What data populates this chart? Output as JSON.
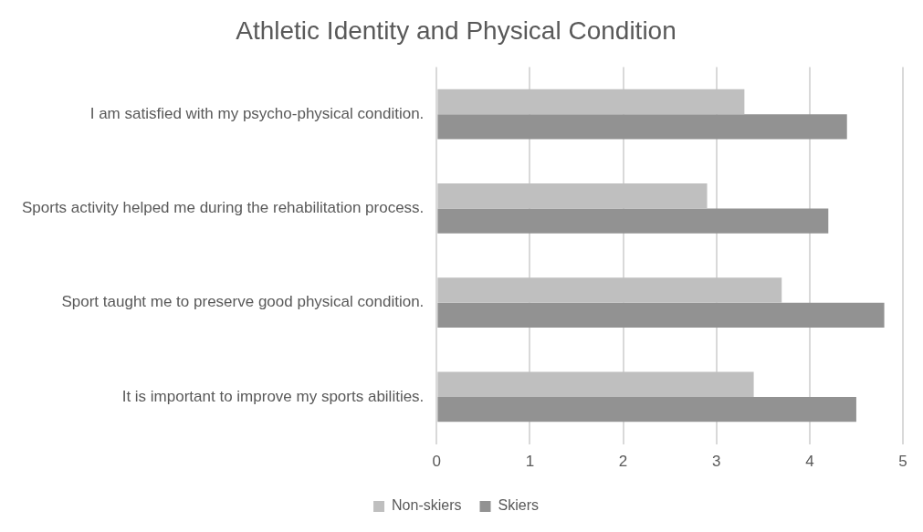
{
  "chart_data": {
    "type": "bar",
    "orientation": "horizontal",
    "title": "Athletic Identity and Physical Condition",
    "categories": [
      "I am satisfied with my psycho-physical condition.",
      "Sports activity helped me during the rehabilitation process.",
      "Sport taught me to preserve good physical condition.",
      "It is important to improve my sports abilities."
    ],
    "series": [
      {
        "name": "Non-skiers",
        "color": "#bfbfbf",
        "values": [
          3.3,
          2.9,
          3.7,
          3.4
        ]
      },
      {
        "name": "Skiers",
        "color": "#929292",
        "values": [
          4.4,
          4.2,
          4.8,
          4.5
        ]
      }
    ],
    "xlim": [
      0,
      5
    ],
    "xticks": [
      0,
      1,
      2,
      3,
      4,
      5
    ],
    "grid": "x",
    "legend": "bottom"
  }
}
